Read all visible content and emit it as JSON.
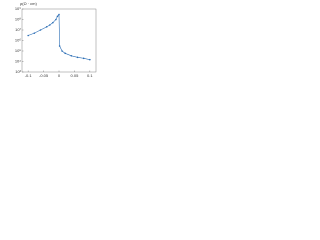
{
  "chart_data": {
    "type": "line",
    "y_label": "ρ(Ω · cm)",
    "log_y": true,
    "color": "#2a6db5",
    "x": [
      -0.1,
      -0.08,
      -0.06,
      -0.04,
      -0.03,
      -0.02,
      -0.01,
      -0.005,
      0,
      0.002,
      0.01,
      0.02,
      0.04,
      0.06,
      0.08,
      0.1
    ],
    "series": [
      {
        "name": "ρ",
        "color": "#2a6db5",
        "values": [
          3000000,
          5000000,
          10000000,
          20000000,
          30000000,
          50000000,
          100000000,
          200000000,
          300000000,
          300000,
          100000,
          60000,
          35000,
          25000,
          20000,
          15000
        ]
      }
    ],
    "xlim": [
      -0.12,
      0.12
    ],
    "xticks": [
      -0.1,
      -0.05,
      0,
      0.05,
      0.1
    ],
    "ylim": [
      1000,
      1000000000
    ],
    "yticks": [
      {
        "value": 1000,
        "label": "10³"
      },
      {
        "value": 10000,
        "label": "10⁴"
      },
      {
        "value": 100000,
        "label": "10⁵"
      },
      {
        "value": 1000000,
        "label": "10⁶"
      },
      {
        "value": 10000000,
        "label": "10⁷"
      },
      {
        "value": 100000000,
        "label": "10⁸"
      },
      {
        "value": 1000000000,
        "label": "10⁹"
      }
    ]
  }
}
